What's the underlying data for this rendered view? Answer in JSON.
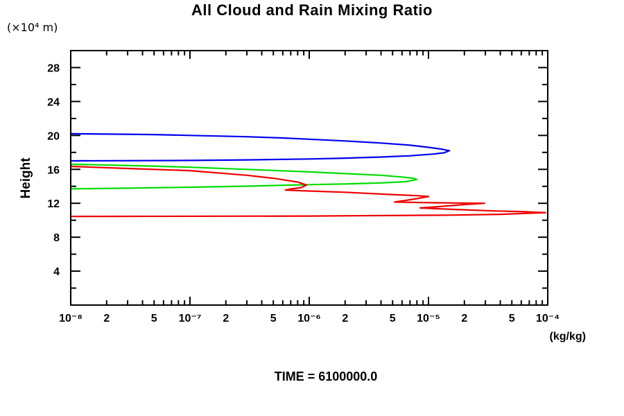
{
  "header": {
    "title": "All Cloud and Rain Mixing Ratio"
  },
  "axes": {
    "y_unit_label": "(×10⁴  m)",
    "y_axis_label": "Height",
    "x_unit_label": "(kg/kg)"
  },
  "footer": {
    "time_label": "TIME = 6100000.0"
  },
  "chart_data": {
    "type": "line",
    "title": "All Cloud and Rain Mixing Ratio",
    "xlabel": "(kg/kg)",
    "ylabel": "Height",
    "y_unit": "(×10⁴ m)",
    "x_scale": "log",
    "xlim": [
      1e-08,
      0.0001
    ],
    "ylim": [
      0,
      30
    ],
    "grid": false,
    "legend": "none",
    "time_annotation": "TIME = 6100000.0",
    "y_major_ticks": [
      4,
      8,
      12,
      16,
      20,
      24,
      28
    ],
    "y_minor_ticks": [
      2,
      6,
      10,
      14,
      18,
      22,
      26
    ],
    "x_decade_ticks": [
      1e-08,
      1e-07,
      1e-06,
      1e-05,
      0.0001
    ],
    "x_minor_multiples": [
      2,
      3,
      4,
      5,
      6,
      7,
      8,
      9
    ],
    "x_labeled_ticks": [
      {
        "v": 1e-08,
        "label": "10⁻⁸"
      },
      {
        "v": 2e-08,
        "label": "2"
      },
      {
        "v": 5e-08,
        "label": "5"
      },
      {
        "v": 1e-07,
        "label": "10⁻⁷"
      },
      {
        "v": 2e-07,
        "label": "2"
      },
      {
        "v": 5e-07,
        "label": "5"
      },
      {
        "v": 1e-06,
        "label": "10⁻⁶"
      },
      {
        "v": 2e-06,
        "label": "2"
      },
      {
        "v": 5e-06,
        "label": "5"
      },
      {
        "v": 1e-05,
        "label": "10⁻⁵"
      },
      {
        "v": 2e-05,
        "label": "2"
      },
      {
        "v": 5e-05,
        "label": "5"
      },
      {
        "v": 0.0001,
        "label": "10⁻⁴"
      }
    ],
    "series": [
      {
        "name": "green-profile",
        "color": "#00dd00",
        "points": [
          [
            1e-08,
            30
          ],
          [
            1e-08,
            16.6
          ],
          [
            5e-08,
            16.38
          ],
          [
            1e-07,
            16.25
          ],
          [
            3e-07,
            16.0
          ],
          [
            1e-06,
            15.7
          ],
          [
            2e-06,
            15.5
          ],
          [
            4e-06,
            15.3
          ],
          [
            6e-06,
            15.1
          ],
          [
            7.5e-06,
            14.95
          ],
          [
            8e-06,
            14.8
          ],
          [
            6.5e-06,
            14.55
          ],
          [
            4e-06,
            14.4
          ],
          [
            2e-06,
            14.28
          ],
          [
            1e-06,
            14.2
          ],
          [
            3e-07,
            14.02
          ],
          [
            1e-07,
            13.9
          ],
          [
            3e-08,
            13.78
          ],
          [
            1e-08,
            13.7
          ],
          [
            1e-08,
            0
          ]
        ]
      },
      {
        "name": "blue-profile",
        "color": "#0000ee",
        "points": [
          [
            1e-08,
            20.2
          ],
          [
            2e-08,
            20.16
          ],
          [
            5e-08,
            20.1
          ],
          [
            1e-07,
            20.0
          ],
          [
            3e-07,
            19.85
          ],
          [
            6e-07,
            19.7
          ],
          [
            1e-06,
            19.55
          ],
          [
            2e-06,
            19.35
          ],
          [
            4e-06,
            19.1
          ],
          [
            7e-06,
            18.85
          ],
          [
            1e-05,
            18.6
          ],
          [
            1.3e-05,
            18.38
          ],
          [
            1.5e-05,
            18.2
          ],
          [
            1.35e-05,
            17.95
          ],
          [
            1.1e-05,
            17.8
          ],
          [
            7e-06,
            17.6
          ],
          [
            4e-06,
            17.45
          ],
          [
            2e-06,
            17.32
          ],
          [
            1e-06,
            17.22
          ],
          [
            3e-07,
            17.12
          ],
          [
            1e-07,
            17.05
          ],
          [
            1e-08,
            17.0
          ]
        ]
      },
      {
        "name": "red-profile",
        "color": "#ee0000",
        "points": [
          [
            1e-08,
            16.35
          ],
          [
            3e-08,
            16.1
          ],
          [
            1e-07,
            15.85
          ],
          [
            3e-07,
            15.3
          ],
          [
            5e-07,
            14.95
          ],
          [
            8e-07,
            14.5
          ],
          [
            9.5e-07,
            14.15
          ],
          [
            8.5e-07,
            13.85
          ],
          [
            7e-07,
            13.68
          ],
          [
            6.3e-07,
            13.55
          ],
          [
            1e-06,
            13.45
          ],
          [
            2e-06,
            13.3
          ],
          [
            4.6e-06,
            13.05
          ],
          [
            8e-06,
            12.9
          ],
          [
            1e-05,
            12.8
          ],
          [
            8e-06,
            12.55
          ],
          [
            6.5e-06,
            12.35
          ],
          [
            5.2e-06,
            12.15
          ],
          [
            9e-06,
            12.08
          ],
          [
            1.8e-05,
            12.03
          ],
          [
            2.95e-05,
            12.0
          ],
          [
            2e-05,
            11.85
          ],
          [
            1.2e-05,
            11.6
          ],
          [
            8.5e-06,
            11.45
          ],
          [
            1.6e-05,
            11.28
          ],
          [
            3.5e-05,
            11.1
          ],
          [
            6.5e-05,
            11.0
          ],
          [
            9.6e-05,
            10.9
          ],
          [
            4e-05,
            10.7
          ],
          [
            1.5e-05,
            10.6
          ],
          [
            1e-06,
            10.5
          ],
          [
            1e-08,
            10.45
          ]
        ]
      }
    ]
  }
}
